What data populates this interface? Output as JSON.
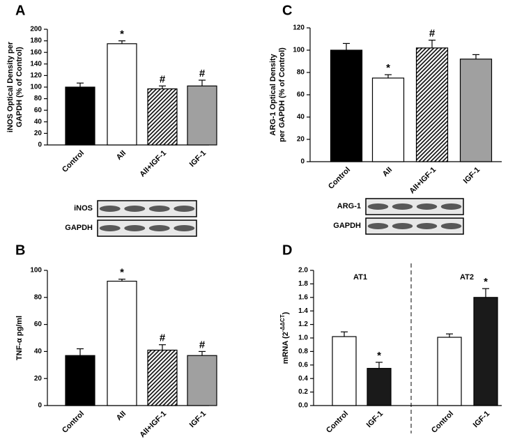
{
  "chart_data": [
    {
      "type": "bar",
      "panel_label": "A",
      "y_label": [
        "iNOS Optical Density per",
        "GAPDH (% of Control)"
      ],
      "categories": [
        "Control",
        "AII",
        "AII+IGF-1",
        "IGF-1"
      ],
      "values": [
        100,
        175,
        97,
        102
      ],
      "errors": [
        7,
        5,
        5,
        10
      ],
      "markers": [
        null,
        "*",
        "#",
        "#"
      ],
      "fills": [
        "#000000",
        "#ffffff",
        "hatch",
        "#a0a0a0"
      ],
      "ylim": [
        0,
        200
      ],
      "yticks": [
        0,
        20,
        40,
        60,
        80,
        100,
        120,
        140,
        160,
        180,
        200
      ],
      "blot_labels": [
        "iNOS",
        "GAPDH"
      ]
    },
    {
      "type": "bar",
      "panel_label": "B",
      "y_label": [
        "TNF-α pg/ml"
      ],
      "categories": [
        "Control",
        "AII",
        "AII+IGF-1",
        "IGF-1"
      ],
      "values": [
        37,
        92,
        41,
        37
      ],
      "errors": [
        5,
        1.5,
        4,
        3
      ],
      "markers": [
        null,
        "*",
        "#",
        "#"
      ],
      "fills": [
        "#000000",
        "#ffffff",
        "hatch",
        "#a0a0a0"
      ],
      "ylim": [
        0,
        100
      ],
      "yticks": [
        0,
        20,
        40,
        60,
        80,
        100
      ]
    },
    {
      "type": "bar",
      "panel_label": "C",
      "y_label": [
        "ARG-1 Optical Density",
        "per GAPDH  (% of Control)"
      ],
      "categories": [
        "Control",
        "AII",
        "AII+IGF-1",
        "IGF-1"
      ],
      "values": [
        100,
        75,
        102,
        92
      ],
      "errors": [
        6,
        3,
        7,
        4
      ],
      "markers": [
        null,
        "*",
        "#",
        null
      ],
      "fills": [
        "#000000",
        "#ffffff",
        "hatch",
        "#a0a0a0"
      ],
      "ylim": [
        0,
        120
      ],
      "yticks": [
        0,
        20,
        40,
        60,
        80,
        100,
        120
      ],
      "blot_labels": [
        "ARG-1",
        "GAPDH"
      ]
    },
    {
      "type": "bar",
      "panel_label": "D",
      "y_label": "mRNA (2",
      "y_label_sup": "-ΔΔCT",
      "y_label_end": ")",
      "groups": [
        "AT1",
        "AT2"
      ],
      "categories": [
        "Control",
        "IGF-1",
        "Control",
        "IGF-1"
      ],
      "values": [
        1.02,
        0.55,
        1.01,
        1.6
      ],
      "errors": [
        0.07,
        0.09,
        0.05,
        0.13
      ],
      "markers": [
        null,
        "*",
        null,
        "*"
      ],
      "fills": [
        "#ffffff",
        "#1a1a1a",
        "#ffffff",
        "#1a1a1a"
      ],
      "ylim": [
        0,
        2.0
      ],
      "yticks": [
        {
          "value": 0,
          "label": "0.0"
        },
        0.2,
        0.4,
        0.6,
        0.8,
        {
          "value": 1,
          "label": "1.0"
        },
        1.2,
        1.4,
        1.6,
        1.8,
        {
          "value": 2,
          "label": "2.0"
        }
      ]
    }
  ]
}
